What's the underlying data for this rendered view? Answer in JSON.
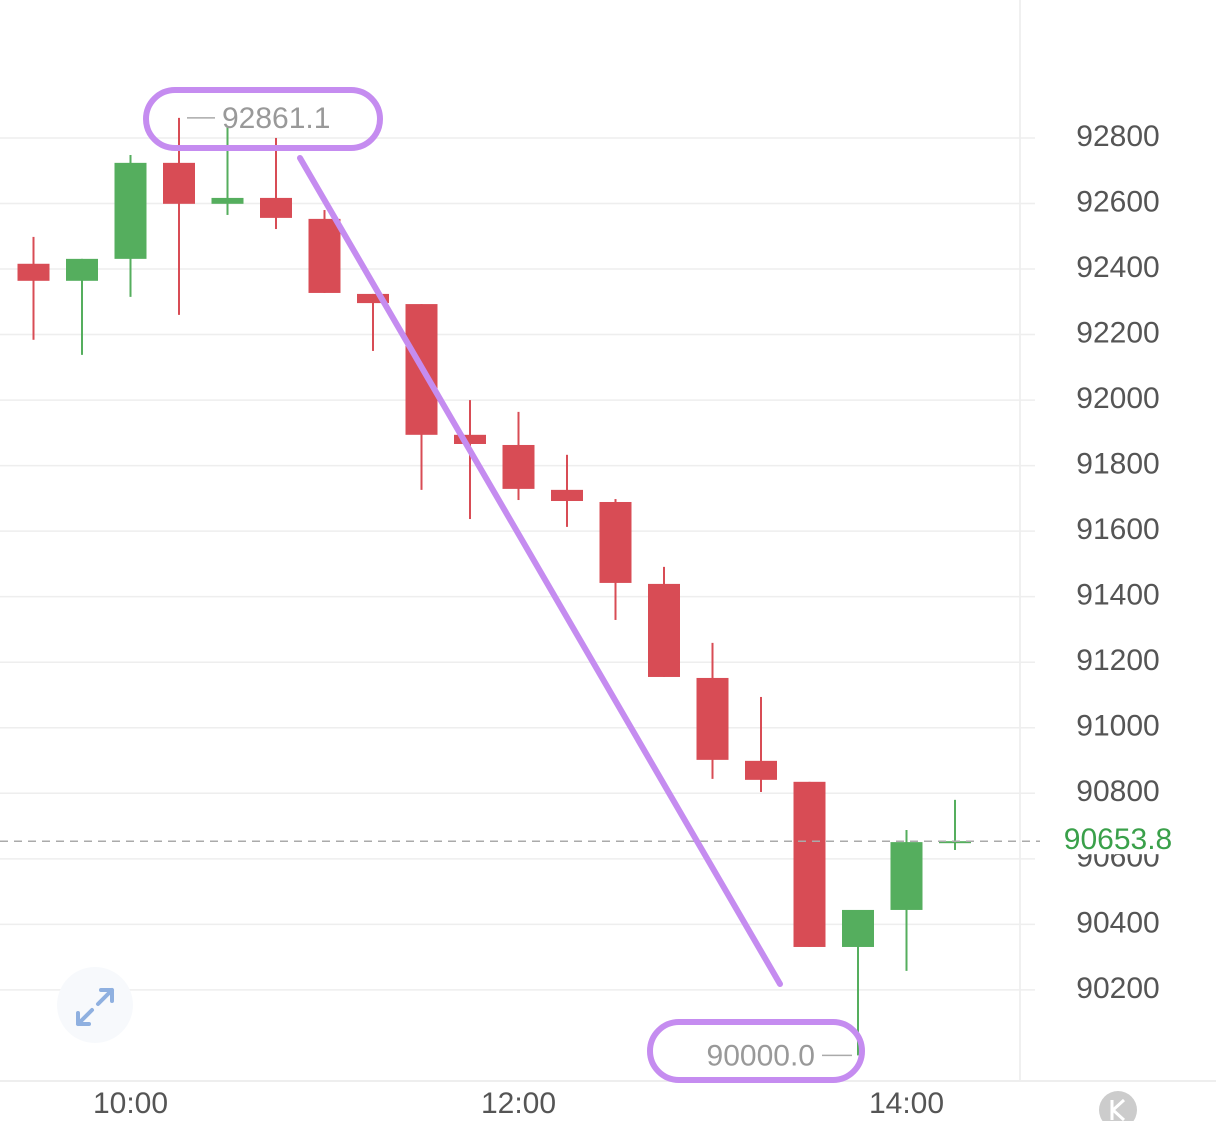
{
  "chart_data": {
    "type": "candlestick",
    "categories": [
      null,
      null,
      "10:00",
      null,
      null,
      null,
      null,
      null,
      null,
      null,
      "12:00",
      null,
      null,
      null,
      null,
      null,
      null,
      null,
      "14:00",
      null
    ],
    "open": [
      92416,
      92364,
      92431,
      92724,
      92599,
      92617,
      92553,
      92324,
      92293,
      91894,
      91863,
      91726,
      91689,
      91439,
      91152,
      90899,
      90835,
      90331,
      90444,
      90650
    ],
    "high": [
      92498,
      92431,
      92748,
      92861.1,
      92834,
      92800,
      92580,
      92324,
      92293,
      92000,
      91964,
      91833,
      91698,
      91491,
      91259,
      91094,
      90835,
      90444,
      90688,
      90780
    ],
    "low": [
      92184,
      92138,
      92315,
      92260,
      92565,
      92522,
      92327,
      92150,
      91726,
      91637,
      91695,
      91613,
      91329,
      91155,
      90844,
      90804,
      90331,
      90000,
      90258,
      90627
    ],
    "close": [
      92364,
      92431,
      92724,
      92599,
      92617,
      92556,
      92327,
      92296,
      91894,
      91866,
      91729,
      91692,
      91442,
      91155,
      90902,
      90841,
      90331,
      90444,
      90651,
      90653.8
    ],
    "up_color": "#55ae5e",
    "down_color": "#d84c55",
    "ylim": [
      89925,
      93221
    ],
    "yticks": [
      90200,
      90400,
      90600,
      90800,
      91000,
      91200,
      91400,
      91600,
      91800,
      92000,
      92200,
      92400,
      92600,
      92800
    ],
    "grid": true,
    "max_label": 92861.1,
    "min_label": {
      "value": 90000,
      "label": "90000.0"
    },
    "last_price": 90653.8
  }
}
